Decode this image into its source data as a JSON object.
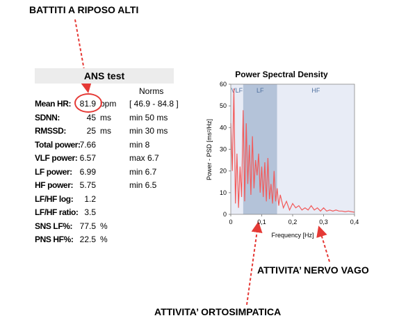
{
  "annotations": {
    "top": "BATTITI A RIPOSO ALTI",
    "vago": "ATTIVITA’ NERVO VAGO",
    "orto": "ATTIVITA’ ORTOSIMPATICA"
  },
  "ans": {
    "title": "ANS test",
    "norms_header": "Norms",
    "rows": [
      {
        "label": "Mean HR:",
        "value": "81.9",
        "unit": "bpm",
        "norm": "[ 46.9 - 84.8 ]"
      },
      {
        "label": "SDNN:",
        "value": "45",
        "unit": "ms",
        "norm": "min 50 ms"
      },
      {
        "label": "RMSSD:",
        "value": "25",
        "unit": "ms",
        "norm": "min 30 ms"
      },
      {
        "label": "Total power:",
        "value": "7.66",
        "unit": "",
        "norm": "min 8"
      },
      {
        "label": "VLF power:",
        "value": "6.57",
        "unit": "",
        "norm": "max 6.7"
      },
      {
        "label": "LF power:",
        "value": "6.99",
        "unit": "",
        "norm": "min 6.7"
      },
      {
        "label": "HF power:",
        "value": "5.75",
        "unit": "",
        "norm": "min 6.5"
      },
      {
        "label": "LF/HF log:",
        "value": "1.2",
        "unit": "",
        "norm": ""
      },
      {
        "label": "LF/HF ratio:",
        "value": "3.5",
        "unit": "",
        "norm": ""
      },
      {
        "label": "SNS LF%:",
        "value": "77.5",
        "unit": "%",
        "norm": ""
      },
      {
        "label": "PNS HF%:",
        "value": "22.5",
        "unit": "%",
        "norm": ""
      }
    ]
  },
  "chart_data": {
    "type": "line",
    "title": "Power Spectral Density",
    "xlabel": "Frequency [Hz]",
    "ylabel": "Power - PSD [ms²/Hz]",
    "xlim": [
      0,
      0.4
    ],
    "ylim": [
      0,
      60
    ],
    "x_ticks": [
      "0",
      "0,1",
      "0,2",
      "0,3",
      "0,4"
    ],
    "y_ticks": [
      "0",
      "10",
      "20",
      "30",
      "40",
      "50",
      "60"
    ],
    "bands": [
      {
        "name": "VLF",
        "from": 0.0,
        "to": 0.04,
        "color": "#e8ecf6"
      },
      {
        "name": "LF",
        "from": 0.04,
        "to": 0.15,
        "color": "#b4c3d9"
      },
      {
        "name": "HF",
        "from": 0.15,
        "to": 0.4,
        "color": "#e8ecf6"
      }
    ],
    "line_color": "#f25b5b",
    "x": [
      0,
      0.005,
      0.01,
      0.015,
      0.02,
      0.025,
      0.03,
      0.035,
      0.04,
      0.045,
      0.05,
      0.055,
      0.06,
      0.065,
      0.07,
      0.075,
      0.08,
      0.085,
      0.09,
      0.095,
      0.1,
      0.105,
      0.11,
      0.115,
      0.12,
      0.125,
      0.13,
      0.135,
      0.14,
      0.145,
      0.15,
      0.155,
      0.16,
      0.17,
      0.18,
      0.19,
      0.2,
      0.21,
      0.22,
      0.23,
      0.24,
      0.25,
      0.26,
      0.27,
      0.28,
      0.29,
      0.3,
      0.31,
      0.32,
      0.33,
      0.34,
      0.35,
      0.36,
      0.37,
      0.38,
      0.39,
      0.4
    ],
    "y": [
      42,
      20,
      58,
      5,
      28,
      3,
      22,
      8,
      48,
      6,
      42,
      14,
      32,
      9,
      36,
      12,
      25,
      18,
      28,
      10,
      22,
      8,
      24,
      6,
      26,
      7,
      14,
      5,
      20,
      6,
      12,
      4,
      9,
      3,
      6,
      2,
      5,
      3,
      4,
      2,
      3,
      2,
      4,
      2,
      3,
      1.5,
      3,
      1.5,
      2,
      1.5,
      2,
      1.5,
      1.5,
      1.2,
      1.5,
      1.2,
      1.0
    ]
  }
}
